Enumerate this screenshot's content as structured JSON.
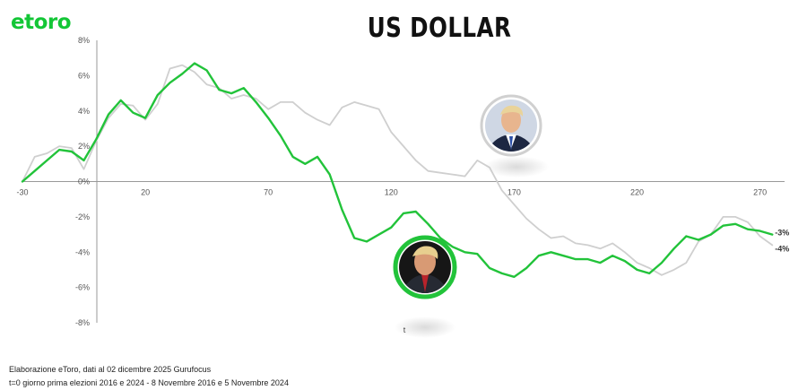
{
  "header": {
    "logo_text": "etoro",
    "title": "US DOLLAR"
  },
  "colors": {
    "brand": "#13c636",
    "series_2016": "#cfcfcf",
    "series_2024": "#22c33a",
    "axis": "#999999"
  },
  "chart_data": {
    "type": "line",
    "title": "US DOLLAR",
    "xlabel": "t",
    "ylabel": "",
    "xlim": [
      -30,
      280
    ],
    "ylim": [
      -8,
      8
    ],
    "x_ticks": [
      -30,
      20,
      70,
      120,
      170,
      220,
      270
    ],
    "y_ticks": [
      8,
      6,
      4,
      2,
      0,
      -2,
      -4,
      -6,
      -8
    ],
    "y_tick_labels": [
      "8%",
      "6%",
      "4%",
      "2%",
      "0%",
      "-2%",
      "-4%",
      "-6%",
      "-8%"
    ],
    "grid": false,
    "series": [
      {
        "name": "",
        "color": "#cfcfcf",
        "x": [
          -30,
          -25,
          -20,
          -15,
          -10,
          -5,
          0,
          5,
          10,
          15,
          20,
          25,
          30,
          35,
          40,
          45,
          50,
          55,
          60,
          65,
          70,
          75,
          80,
          85,
          90,
          95,
          100,
          105,
          110,
          115,
          120,
          125,
          130,
          135,
          140,
          145,
          150,
          155,
          160,
          165,
          170,
          175,
          180,
          185,
          190,
          195,
          200,
          205,
          210,
          215,
          220,
          225,
          230,
          235,
          240,
          245,
          250,
          255,
          260,
          265,
          270,
          275
        ],
        "values": [
          0,
          1.4,
          1.6,
          2.0,
          1.9,
          0.7,
          2.3,
          3.6,
          4.4,
          4.3,
          3.5,
          4.4,
          6.4,
          6.6,
          6.2,
          5.5,
          5.3,
          4.7,
          4.9,
          4.7,
          4.1,
          4.5,
          4.5,
          3.9,
          3.5,
          3.2,
          4.2,
          4.5,
          4.3,
          4.1,
          2.8,
          2.0,
          1.2,
          0.6,
          0.5,
          0.4,
          0.3,
          1.2,
          0.8,
          -0.5,
          -1.3,
          -2.1,
          -2.7,
          -3.2,
          -3.1,
          -3.5,
          -3.6,
          -3.8,
          -3.5,
          -4.0,
          -4.6,
          -4.9,
          -5.3,
          -5.0,
          -4.6,
          -3.4,
          -3.0,
          -2.0,
          -2.0,
          -2.3,
          -3.1,
          -3.6
        ],
        "end_label": "-4%"
      },
      {
        "name": "",
        "color": "#22c33a",
        "x": [
          -30,
          -25,
          -20,
          -15,
          -10,
          -5,
          0,
          5,
          10,
          15,
          20,
          25,
          30,
          35,
          40,
          45,
          50,
          55,
          60,
          65,
          70,
          75,
          80,
          85,
          90,
          95,
          100,
          105,
          110,
          115,
          120,
          125,
          130,
          135,
          140,
          145,
          150,
          155,
          160,
          165,
          170,
          175,
          180,
          185,
          190,
          195,
          200,
          205,
          210,
          215,
          220,
          225,
          230,
          235,
          240,
          245,
          250,
          255,
          260,
          265,
          270,
          275
        ],
        "values": [
          0,
          0.6,
          1.2,
          1.8,
          1.7,
          1.2,
          2.4,
          3.8,
          4.6,
          3.9,
          3.6,
          4.9,
          5.6,
          6.1,
          6.7,
          6.3,
          5.2,
          5.0,
          5.3,
          4.5,
          3.6,
          2.6,
          1.4,
          1.0,
          1.4,
          0.4,
          -1.6,
          -3.2,
          -3.4,
          -3.0,
          -2.6,
          -1.8,
          -1.7,
          -2.4,
          -3.2,
          -3.7,
          -4.0,
          -4.1,
          -4.9,
          -5.2,
          -5.4,
          -4.9,
          -4.2,
          -4.0,
          -4.2,
          -4.4,
          -4.4,
          -4.6,
          -4.2,
          -4.5,
          -5.0,
          -5.2,
          -4.6,
          -3.8,
          -3.1,
          -3.3,
          -3.0,
          -2.5,
          -2.4,
          -2.7,
          -2.8,
          -3.0
        ],
        "end_label": "-3%"
      }
    ]
  },
  "footer": {
    "line1": "Elaborazione eToro, dati al 02 dicembre  2025 Gurufocus",
    "line2": "t=0 giorno prima elezioni 2016 e 2024 - 8 Novembre 2016 e 5 Novembre 2024"
  }
}
